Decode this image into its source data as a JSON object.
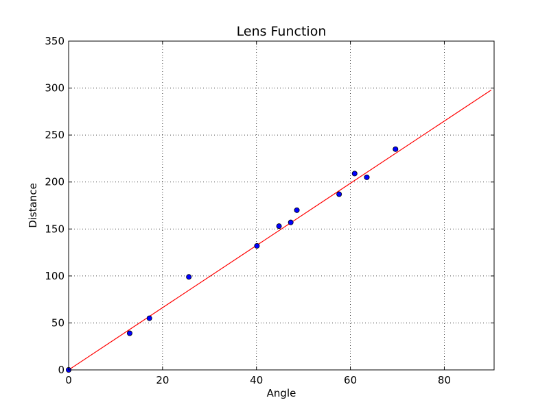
{
  "chart_data": {
    "type": "scatter",
    "title": "Lens Function",
    "xlabel": "Angle",
    "ylabel": "Distance",
    "xlim": [
      0,
      90.6
    ],
    "ylim": [
      0,
      350
    ],
    "grid": true,
    "x_ticks": [
      0,
      20,
      40,
      60,
      80
    ],
    "y_ticks": [
      0,
      50,
      100,
      150,
      200,
      250,
      300,
      350
    ],
    "series": [
      {
        "kind": "scatter",
        "color": "#0000ff",
        "edge_color": "#000000",
        "points": [
          {
            "x": 0,
            "y": 0
          },
          {
            "x": 13,
            "y": 39
          },
          {
            "x": 17.2,
            "y": 55
          },
          {
            "x": 25.6,
            "y": 99
          },
          {
            "x": 40.1,
            "y": 132
          },
          {
            "x": 44.8,
            "y": 153
          },
          {
            "x": 47.3,
            "y": 157
          },
          {
            "x": 48.6,
            "y": 170
          },
          {
            "x": 57.6,
            "y": 187
          },
          {
            "x": 60.9,
            "y": 209
          },
          {
            "x": 63.5,
            "y": 205
          },
          {
            "x": 69.6,
            "y": 235
          }
        ]
      },
      {
        "kind": "line",
        "color": "#ff0000",
        "points": [
          {
            "x": 0,
            "y": 0
          },
          {
            "x": 90,
            "y": 298
          }
        ]
      }
    ]
  }
}
